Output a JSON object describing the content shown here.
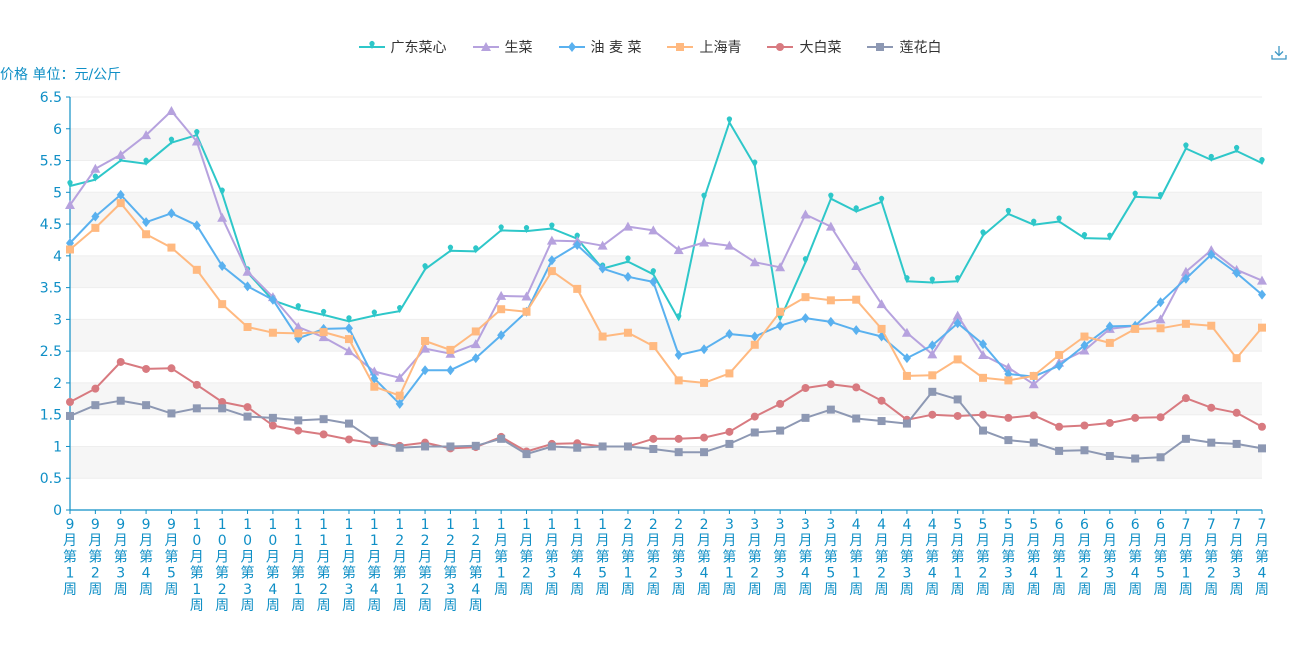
{
  "chart_data": {
    "type": "line",
    "ylabel": "价格 单位：元/公斤",
    "ylim": [
      0,
      6.5
    ],
    "yticks": [
      "0",
      "0.5",
      "1",
      "1.5",
      "2",
      "2.5",
      "3",
      "3.5",
      "4",
      "4.5",
      "5",
      "5.5",
      "6",
      "6.5"
    ],
    "grid": "horizontal bands",
    "legend_position": "top-center",
    "categories": [
      "9月第1周",
      "9月第2周",
      "9月第3周",
      "9月第4周",
      "9月第5周",
      "10月第1周",
      "10月第2周",
      "10月第3周",
      "10月第4周",
      "11月第1周",
      "11月第2周",
      "11月第3周",
      "11月第4周",
      "12月第1周",
      "12月第2周",
      "12月第3周",
      "12月第4周",
      "1月第1周",
      "1月第2周",
      "1月第3周",
      "1月第4周",
      "1月第5周",
      "2月第1周",
      "2月第2周",
      "2月第3周",
      "2月第4周",
      "3月第1周",
      "3月第2周",
      "3月第3周",
      "3月第4周",
      "3月第5周",
      "4月第1周",
      "4月第2周",
      "4月第3周",
      "4月第4周",
      "5月第1周",
      "5月第2周",
      "5月第3周",
      "5月第4周",
      "6月第1周",
      "6月第2周",
      "6月第3周",
      "6月第4周",
      "6月第5周",
      "7月第1周",
      "7月第2周",
      "7月第3周",
      "7月第4周"
    ],
    "series": [
      {
        "name": "广东菜心",
        "color": "#2ec7c9",
        "symbol": "pin",
        "values": [
          5.1,
          5.2,
          5.5,
          5.45,
          5.78,
          5.9,
          4.98,
          3.74,
          3.3,
          3.16,
          3.07,
          2.97,
          3.06,
          3.13,
          3.79,
          4.08,
          4.07,
          4.4,
          4.39,
          4.43,
          4.27,
          3.8,
          3.91,
          3.71,
          3.0,
          4.9,
          6.1,
          5.42,
          3.0,
          3.9,
          4.9,
          4.7,
          4.85,
          3.6,
          3.58,
          3.6,
          4.32,
          4.66,
          4.49,
          4.54,
          4.28,
          4.27,
          4.93,
          4.91,
          5.69,
          5.51,
          5.65,
          5.46
        ]
      },
      {
        "name": "生菜",
        "color": "#b6a2de",
        "symbol": "triangle",
        "values": [
          4.8,
          5.37,
          5.59,
          5.9,
          6.28,
          5.8,
          4.6,
          3.75,
          3.35,
          2.88,
          2.72,
          2.5,
          2.18,
          2.08,
          2.54,
          2.46,
          2.61,
          3.37,
          3.36,
          4.24,
          4.23,
          4.16,
          4.46,
          4.4,
          4.09,
          4.21,
          4.16,
          3.9,
          3.82,
          4.65,
          4.46,
          3.84,
          3.24,
          2.79,
          2.45,
          3.06,
          2.44,
          2.24,
          1.98,
          2.32,
          2.51,
          2.85,
          2.9,
          3.0,
          3.75,
          4.09,
          3.78,
          3.61
        ]
      },
      {
        "name": "油 麦 菜",
        "color": "#5ab1ef",
        "symbol": "diamond",
        "values": [
          4.2,
          4.62,
          4.96,
          4.53,
          4.67,
          4.48,
          3.84,
          3.52,
          3.31,
          2.7,
          2.85,
          2.86,
          2.07,
          1.67,
          2.2,
          2.2,
          2.39,
          2.75,
          3.12,
          3.93,
          4.17,
          3.8,
          3.67,
          3.59,
          2.44,
          2.53,
          2.77,
          2.73,
          2.9,
          3.02,
          2.96,
          2.83,
          2.73,
          2.39,
          2.59,
          2.94,
          2.61,
          2.14,
          2.1,
          2.27,
          2.59,
          2.89,
          2.9,
          3.27,
          3.64,
          4.02,
          3.73,
          3.39
        ]
      },
      {
        "name": "上海青",
        "color": "#ffb980",
        "symbol": "square",
        "values": [
          4.1,
          4.44,
          4.83,
          4.34,
          4.13,
          3.78,
          3.24,
          2.88,
          2.79,
          2.78,
          2.8,
          2.69,
          1.94,
          1.8,
          2.66,
          2.52,
          2.81,
          3.16,
          3.12,
          3.76,
          3.48,
          2.73,
          2.79,
          2.58,
          2.04,
          2.0,
          2.15,
          2.6,
          3.12,
          3.35,
          3.3,
          3.31,
          2.85,
          2.11,
          2.12,
          2.37,
          2.08,
          2.04,
          2.11,
          2.44,
          2.73,
          2.63,
          2.85,
          2.86,
          2.93,
          2.9,
          2.39,
          2.87
        ]
      },
      {
        "name": "大白菜",
        "color": "#d87a80",
        "symbol": "circle",
        "values": [
          1.7,
          1.91,
          2.33,
          2.22,
          2.23,
          1.97,
          1.7,
          1.62,
          1.33,
          1.25,
          1.19,
          1.11,
          1.05,
          1.01,
          1.06,
          0.97,
          0.99,
          1.15,
          0.92,
          1.04,
          1.05,
          1.0,
          1.0,
          1.12,
          1.12,
          1.14,
          1.23,
          1.47,
          1.67,
          1.92,
          1.98,
          1.93,
          1.72,
          1.42,
          1.5,
          1.48,
          1.5,
          1.45,
          1.49,
          1.31,
          1.33,
          1.37,
          1.45,
          1.46,
          1.76,
          1.61,
          1.53,
          1.31
        ]
      },
      {
        "name": "莲花白",
        "color": "#8d98b3",
        "symbol": "square",
        "values": [
          1.48,
          1.65,
          1.72,
          1.65,
          1.52,
          1.6,
          1.6,
          1.47,
          1.45,
          1.41,
          1.43,
          1.36,
          1.09,
          0.98,
          1.0,
          1.0,
          1.01,
          1.12,
          0.88,
          1.0,
          0.98,
          1.0,
          1.0,
          0.96,
          0.91,
          0.91,
          1.04,
          1.22,
          1.25,
          1.45,
          1.58,
          1.44,
          1.4,
          1.36,
          1.86,
          1.74,
          1.25,
          1.1,
          1.06,
          0.93,
          0.94,
          0.85,
          0.81,
          0.83,
          1.12,
          1.06,
          1.04,
          0.97
        ]
      }
    ]
  }
}
